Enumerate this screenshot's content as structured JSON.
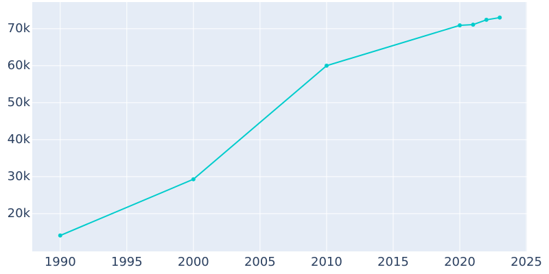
{
  "chart_data": {
    "type": "line",
    "x": [
      1990,
      2000,
      2010,
      2020,
      2021,
      2022,
      2023
    ],
    "values": [
      14100,
      29300,
      60000,
      70900,
      71100,
      72400,
      73000
    ],
    "color": "#00cccc",
    "xlim": [
      1987.9,
      2025.05
    ],
    "ylim": [
      9800,
      77200
    ],
    "xticks": [
      1990,
      1995,
      2000,
      2005,
      2010,
      2015,
      2020,
      2025
    ],
    "yticks": [
      {
        "value": 20000,
        "label": "20k"
      },
      {
        "value": 30000,
        "label": "30k"
      },
      {
        "value": 40000,
        "label": "40k"
      },
      {
        "value": 50000,
        "label": "50k"
      },
      {
        "value": 60000,
        "label": "60k"
      },
      {
        "value": 70000,
        "label": "70k"
      }
    ],
    "grid": true
  }
}
